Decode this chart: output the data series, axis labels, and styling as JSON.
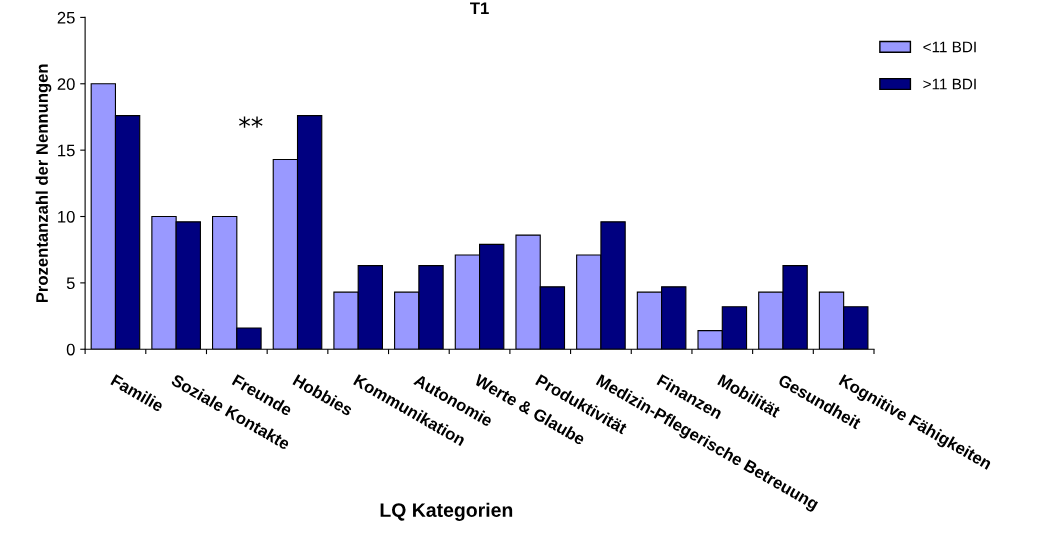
{
  "chart_data": {
    "type": "bar",
    "title": "T1",
    "xlabel": "LQ Kategorien",
    "ylabel": "Prozentanzahl der Nennungen",
    "categories": [
      "Familie",
      "Soziale Kontakte",
      "Freunde",
      "Hobbies",
      "Kommunikation",
      "Autonomie",
      "Werte & Glaube",
      "Produktivität",
      "Medizin-Pflegerische Betreuung",
      "Finanzen",
      "Mobilität",
      "Gesundheit",
      "Kognitive Fähigkeiten"
    ],
    "series": [
      {
        "name": "<11 BDI",
        "color": "#9999ff",
        "values": [
          20,
          10,
          10,
          14.3,
          4.3,
          4.3,
          7.1,
          8.6,
          7.1,
          4.3,
          1.4,
          4.3,
          4.3
        ]
      },
      {
        "name": ">11 BDI",
        "color": "#000080",
        "values": [
          17.6,
          9.6,
          1.6,
          17.6,
          6.3,
          6.3,
          7.9,
          4.7,
          9.6,
          4.7,
          3.2,
          6.3,
          3.2
        ]
      }
    ],
    "ylim": [
      0,
      25
    ],
    "yticks": [
      0,
      5,
      10,
      15,
      20,
      25
    ],
    "grid": false,
    "legend": "top right",
    "annotations": [
      "**"
    ]
  }
}
